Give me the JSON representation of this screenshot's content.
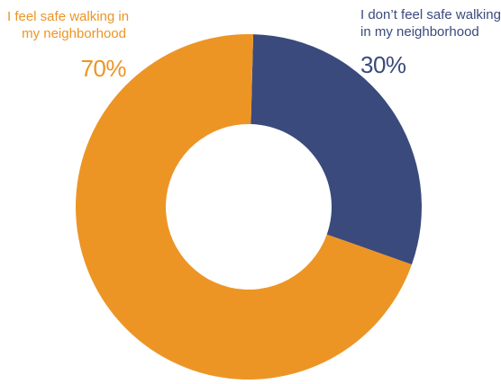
{
  "chart_data": {
    "type": "pie",
    "style": "donut",
    "title": "",
    "grid": false,
    "legend": "none",
    "slices": [
      {
        "label_lines": [
          "I don’t feel safe walking",
          "in my neighborhood"
        ],
        "value": 30,
        "value_label": "30%",
        "color": "#3a4a7c"
      },
      {
        "label_lines": [
          "I feel safe walking in",
          "my neighborhood"
        ],
        "value": 70,
        "value_label": "70%",
        "color": "#ec9525"
      }
    ]
  }
}
